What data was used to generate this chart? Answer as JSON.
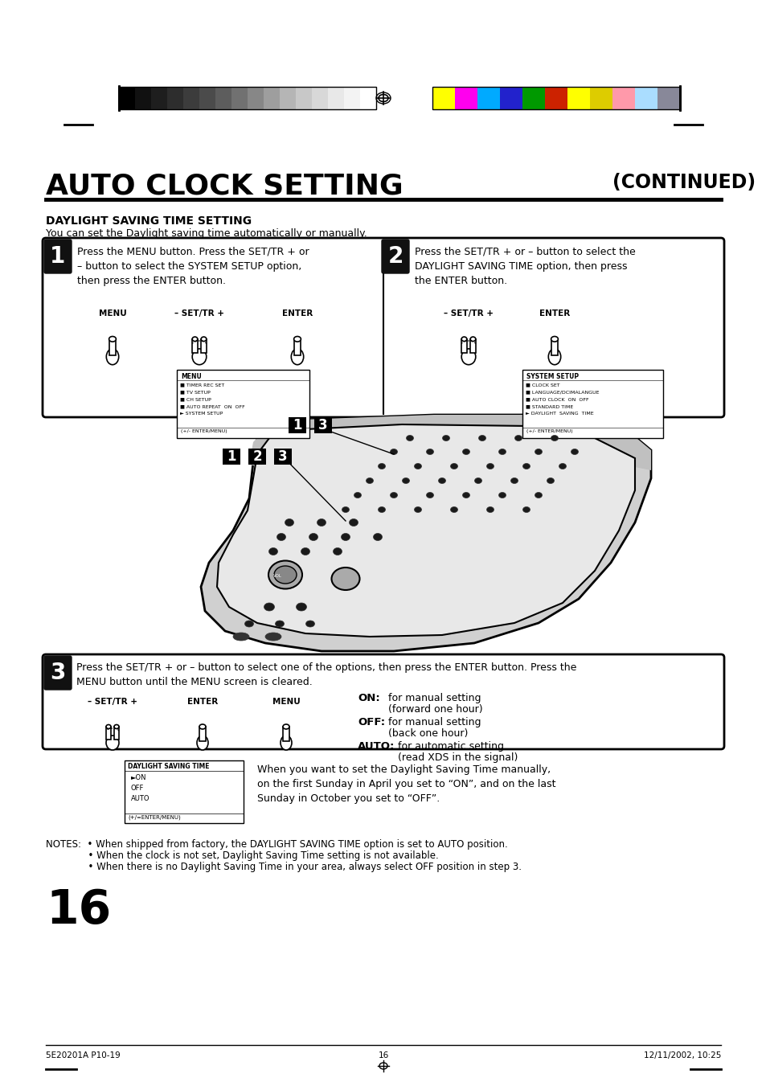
{
  "page_bg": "#ffffff",
  "title_text": "AUTO CLOCK SETTING",
  "continued_text": "(CONTINUED)",
  "section_title": "DAYLIGHT SAVING TIME SETTING",
  "section_subtitle": "You can set the Daylight saving time automatically or manually.",
  "step1_text": "Press the MENU button. Press the SET/TR + or\n– button to select the SYSTEM SETUP option,\nthen press the ENTER button.",
  "step2_text": "Press the SET/TR + or – button to select the\nDAYLIGHT SAVING TIME option, then press\nthe ENTER button.",
  "step3_text": "Press the SET/TR + or – button to select one of the options, then press the ENTER button. Press the\nMENU button until the MENU screen is cleared.",
  "on_label": "ON:",
  "on_desc1": "for manual setting",
  "on_desc2": "(forward one hour)",
  "off_label": "OFF:",
  "off_desc1": "for manual setting",
  "off_desc2": "(back one hour)",
  "auto_label": "AUTO:",
  "auto_desc1": "for automatic setting",
  "auto_desc2": "(read XDS in the signal)",
  "dst_note": "When you want to set the Daylight Saving Time manually,\non the first Sunday in April you set to “ON”, and on the last\nSunday in October you set to “OFF”.",
  "notes_line1": "NOTES:  • When shipped from factory, the DAYLIGHT SAVING TIME option is set to AUTO position.",
  "notes_line2": "              • When the clock is not set, Daylight Saving Time setting is not available.",
  "notes_line3": "              • When there is no Daylight Saving Time in your area, always select OFF position in step 3.",
  "page_number": "16",
  "footer_left": "5E20201A P10-19",
  "footer_center": "16",
  "footer_right": "12/11/2002, 10:25",
  "bw_colors": [
    "#000000",
    "#111111",
    "#1e1e1e",
    "#2d2d2d",
    "#3c3c3c",
    "#4b4b4b",
    "#5d5d5d",
    "#717171",
    "#878787",
    "#9e9e9e",
    "#b5b5b5",
    "#c8c8c8",
    "#d8d8d8",
    "#e8e8e8",
    "#f3f3f3",
    "#ffffff"
  ],
  "color_bars": [
    "#ffff00",
    "#ff00ee",
    "#00aaff",
    "#2222cc",
    "#009900",
    "#cc2200",
    "#ffff00",
    "#ddcc00",
    "#ff99aa",
    "#aaddff",
    "#888899"
  ],
  "menu_items_1": [
    "MENU",
    "TIMER REC SET",
    "TV SETUP",
    "CH SETUP",
    "AUTO REPEAT  ON  OFF",
    "SYSTEM SETUP",
    "(+/- ENTER/MENU)"
  ],
  "menu_items_2": [
    "SYSTEM SETUP",
    "CLOCK SET",
    "LANGUAGE/DCIMALANGUE",
    "AUTO CLOCK  ON  OFF",
    "STANDARD TIME",
    "DAYLIGHT  SAVING  TIME",
    "(+/- ENTER/MENU)"
  ],
  "dst_menu_items": [
    "DAYLIGHT SAVING TIME",
    "►ON",
    "OFF",
    "AUTO",
    "(+/=ENTER/MENU)"
  ]
}
